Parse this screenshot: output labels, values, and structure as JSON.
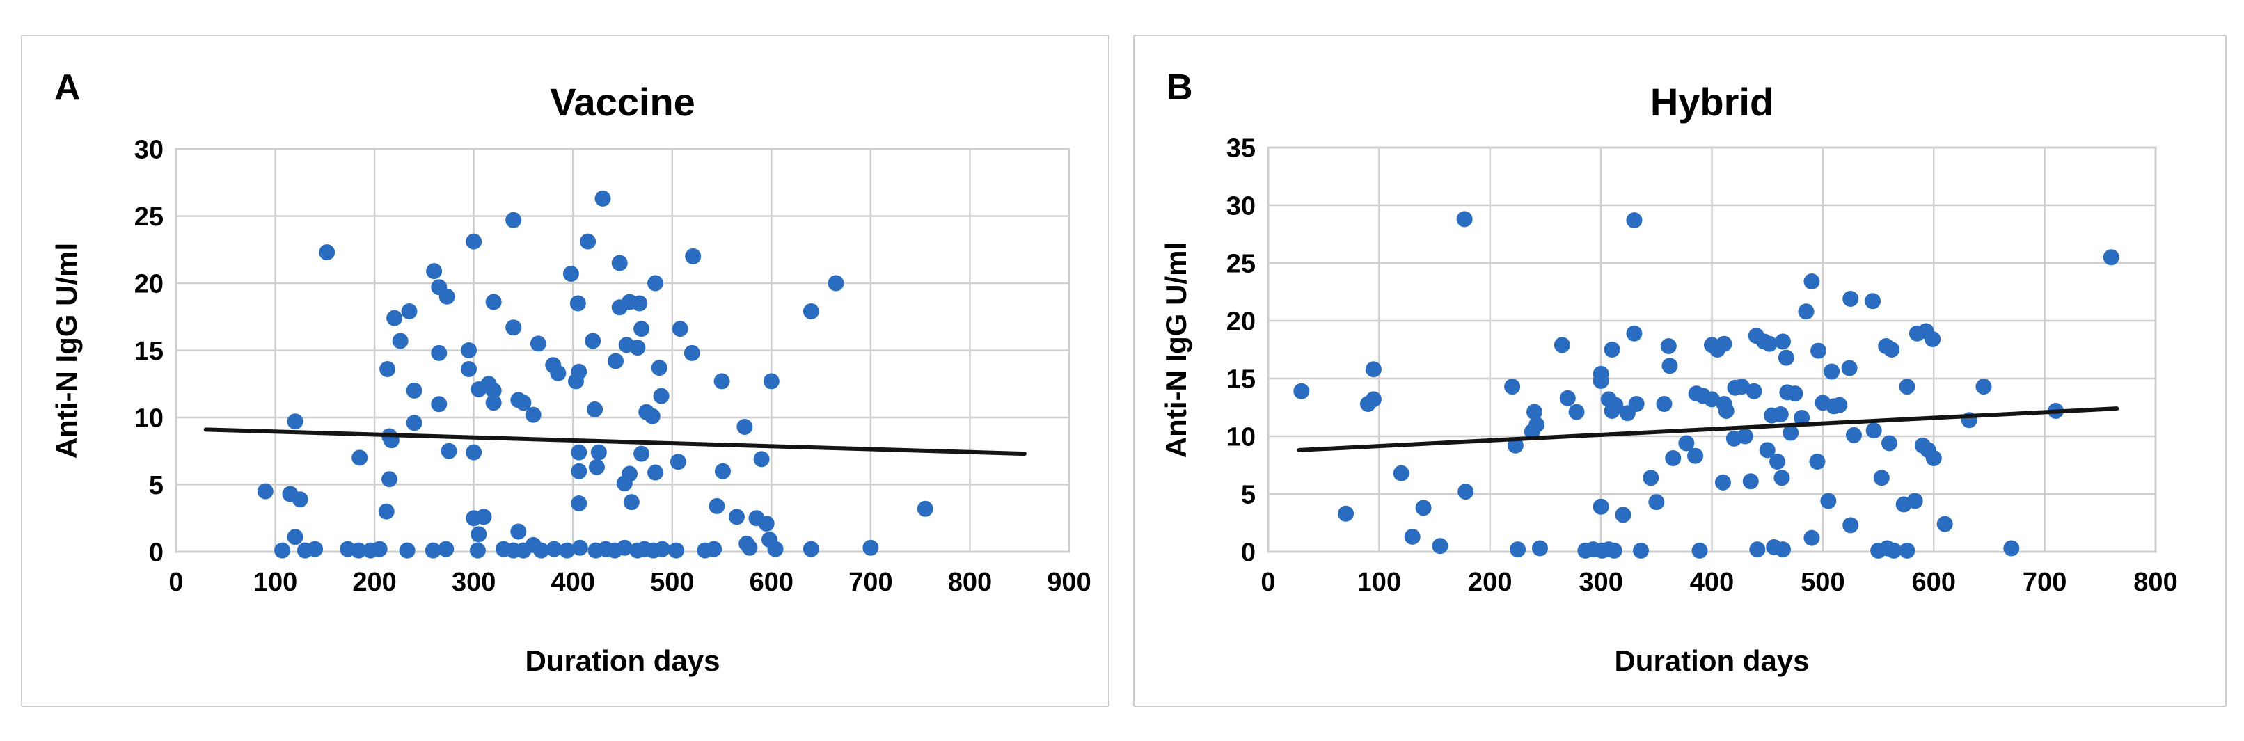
{
  "figure": {
    "background": "#ffffff"
  },
  "styles": {
    "point_color": "#2a6cc0",
    "trend_color": "#141414",
    "grid_color": "#cfcfcf",
    "panel_border": "#cccccc",
    "text_color": "#000000"
  },
  "chart_data": [
    {
      "type": "scatter",
      "panel_label": "A",
      "title": "Vaccine",
      "xlabel": "Duration days",
      "ylabel": "Anti-N IgG U/ml",
      "xlim": [
        0,
        900
      ],
      "ylim": [
        0,
        30
      ],
      "x_ticks": [
        0,
        100,
        200,
        300,
        400,
        500,
        600,
        700,
        800,
        900
      ],
      "y_ticks": [
        0,
        5,
        10,
        15,
        20,
        25,
        30
      ],
      "grid": true,
      "legend": false,
      "trendline": {
        "x1": 30,
        "y1": 9.1,
        "x2": 855,
        "y2": 7.3
      },
      "points": [
        [
          152,
          22.3
        ],
        [
          260,
          20.9
        ],
        [
          300,
          23.1
        ],
        [
          340,
          24.7
        ],
        [
          398,
          20.7
        ],
        [
          415,
          23.1
        ],
        [
          430,
          26.3
        ],
        [
          447,
          21.5
        ],
        [
          483,
          20.0
        ],
        [
          521,
          22.0
        ],
        [
          665,
          20.0
        ],
        [
          220,
          17.4
        ],
        [
          226,
          15.7
        ],
        [
          235,
          17.9
        ],
        [
          265,
          19.7
        ],
        [
          273,
          19.0
        ],
        [
          320,
          18.6
        ],
        [
          340,
          16.7
        ],
        [
          365,
          15.5
        ],
        [
          405,
          18.5
        ],
        [
          420,
          15.7
        ],
        [
          447,
          18.2
        ],
        [
          454,
          15.4
        ],
        [
          457,
          18.6
        ],
        [
          465,
          15.2
        ],
        [
          467,
          18.5
        ],
        [
          469,
          16.6
        ],
        [
          508,
          16.6
        ],
        [
          640,
          17.9
        ],
        [
          213,
          13.6
        ],
        [
          240,
          12.0
        ],
        [
          265,
          11.0
        ],
        [
          265,
          14.8
        ],
        [
          295,
          15.0
        ],
        [
          295,
          13.6
        ],
        [
          305,
          12.1
        ],
        [
          315,
          12.5
        ],
        [
          320,
          12.0
        ],
        [
          320,
          11.1
        ],
        [
          345,
          11.3
        ],
        [
          350,
          11.1
        ],
        [
          360,
          10.2
        ],
        [
          380,
          13.9
        ],
        [
          385,
          13.3
        ],
        [
          403,
          12.7
        ],
        [
          406,
          13.4
        ],
        [
          422,
          10.6
        ],
        [
          443,
          14.2
        ],
        [
          474,
          10.4
        ],
        [
          480,
          10.1
        ],
        [
          487,
          13.7
        ],
        [
          489,
          11.6
        ],
        [
          520,
          14.8
        ],
        [
          550,
          12.7
        ],
        [
          600,
          12.7
        ],
        [
          120,
          9.7
        ],
        [
          185,
          7.0
        ],
        [
          215,
          8.6
        ],
        [
          215,
          5.4
        ],
        [
          217,
          8.3
        ],
        [
          240,
          9.6
        ],
        [
          275,
          7.5
        ],
        [
          300,
          7.4
        ],
        [
          406,
          7.4
        ],
        [
          426,
          7.4
        ],
        [
          406,
          6.0
        ],
        [
          424,
          6.3
        ],
        [
          452,
          5.1
        ],
        [
          457,
          5.8
        ],
        [
          469,
          7.3
        ],
        [
          483,
          5.9
        ],
        [
          506,
          6.7
        ],
        [
          551,
          6.0
        ],
        [
          573,
          9.3
        ],
        [
          590,
          6.9
        ],
        [
          90,
          4.5
        ],
        [
          115,
          4.3
        ],
        [
          125,
          3.9
        ],
        [
          120,
          1.1
        ],
        [
          212,
          3.0
        ],
        [
          300,
          2.5
        ],
        [
          305,
          1.3
        ],
        [
          310,
          2.6
        ],
        [
          345,
          1.5
        ],
        [
          406,
          3.6
        ],
        [
          459,
          3.7
        ],
        [
          545,
          3.4
        ],
        [
          565,
          2.6
        ],
        [
          585,
          2.5
        ],
        [
          595,
          2.1
        ],
        [
          598,
          0.9
        ],
        [
          755,
          3.2
        ],
        [
          107,
          0.1
        ],
        [
          130,
          0.1
        ],
        [
          140,
          0.2
        ],
        [
          173,
          0.2
        ],
        [
          184,
          0.1
        ],
        [
          196,
          0.1
        ],
        [
          205,
          0.2
        ],
        [
          233,
          0.1
        ],
        [
          259,
          0.1
        ],
        [
          272,
          0.2
        ],
        [
          304,
          0.1
        ],
        [
          330,
          0.2
        ],
        [
          340,
          0.1
        ],
        [
          350,
          0.1
        ],
        [
          360,
          0.5
        ],
        [
          368,
          0.1
        ],
        [
          381,
          0.2
        ],
        [
          394,
          0.1
        ],
        [
          407,
          0.3
        ],
        [
          423,
          0.1
        ],
        [
          433,
          0.2
        ],
        [
          442,
          0.1
        ],
        [
          452,
          0.3
        ],
        [
          465,
          0.1
        ],
        [
          472,
          0.2
        ],
        [
          481,
          0.1
        ],
        [
          490,
          0.2
        ],
        [
          504,
          0.1
        ],
        [
          533,
          0.1
        ],
        [
          542,
          0.2
        ],
        [
          575,
          0.6
        ],
        [
          578,
          0.3
        ],
        [
          604,
          0.2
        ],
        [
          640,
          0.2
        ],
        [
          700,
          0.3
        ]
      ]
    },
    {
      "type": "scatter",
      "panel_label": "B",
      "title": "Hybrid",
      "xlabel": "Duration days",
      "ylabel": "Anti-N IgG U/ml",
      "xlim": [
        0,
        800
      ],
      "ylim": [
        0,
        35
      ],
      "x_ticks": [
        0,
        100,
        200,
        300,
        400,
        500,
        600,
        700,
        800
      ],
      "y_ticks": [
        0,
        5,
        10,
        15,
        20,
        25,
        30,
        35
      ],
      "grid": true,
      "legend": false,
      "trendline": {
        "x1": 28,
        "y1": 8.8,
        "x2": 765,
        "y2": 12.4
      },
      "points": [
        [
          177,
          28.8
        ],
        [
          330,
          28.7
        ],
        [
          760,
          25.5
        ],
        [
          490,
          23.4
        ],
        [
          525,
          21.9
        ],
        [
          545,
          21.7
        ],
        [
          485,
          20.8
        ],
        [
          95,
          15.8
        ],
        [
          265,
          17.9
        ],
        [
          300,
          15.4
        ],
        [
          310,
          17.5
        ],
        [
          330,
          18.9
        ],
        [
          361,
          17.8
        ],
        [
          362,
          16.1
        ],
        [
          400,
          17.9
        ],
        [
          405,
          17.5
        ],
        [
          411,
          18.0
        ],
        [
          440,
          18.7
        ],
        [
          447,
          18.2
        ],
        [
          452,
          18.0
        ],
        [
          464,
          18.2
        ],
        [
          467,
          16.8
        ],
        [
          496,
          17.4
        ],
        [
          508,
          15.6
        ],
        [
          524,
          15.9
        ],
        [
          557,
          17.8
        ],
        [
          562,
          17.5
        ],
        [
          585,
          18.9
        ],
        [
          593,
          19.1
        ],
        [
          599,
          18.4
        ],
        [
          30,
          13.9
        ],
        [
          90,
          12.8
        ],
        [
          95,
          13.2
        ],
        [
          220,
          14.3
        ],
        [
          238,
          10.4
        ],
        [
          240,
          12.1
        ],
        [
          242,
          11.0
        ],
        [
          270,
          13.3
        ],
        [
          278,
          12.1
        ],
        [
          300,
          14.8
        ],
        [
          307,
          13.2
        ],
        [
          310,
          12.2
        ],
        [
          313,
          12.7
        ],
        [
          324,
          12.0
        ],
        [
          332,
          12.8
        ],
        [
          357,
          12.8
        ],
        [
          386,
          13.7
        ],
        [
          392,
          13.5
        ],
        [
          400,
          13.2
        ],
        [
          411,
          12.8
        ],
        [
          413,
          12.2
        ],
        [
          421,
          14.2
        ],
        [
          427,
          14.3
        ],
        [
          438,
          13.9
        ],
        [
          454,
          11.8
        ],
        [
          462,
          11.9
        ],
        [
          468,
          13.8
        ],
        [
          475,
          13.7
        ],
        [
          481,
          11.6
        ],
        [
          500,
          12.9
        ],
        [
          510,
          12.6
        ],
        [
          515,
          12.7
        ],
        [
          528,
          10.1
        ],
        [
          546,
          10.5
        ],
        [
          576,
          14.3
        ],
        [
          632,
          11.4
        ],
        [
          645,
          14.3
        ],
        [
          710,
          12.2
        ],
        [
          120,
          6.8
        ],
        [
          178,
          5.2
        ],
        [
          223,
          9.2
        ],
        [
          345,
          6.4
        ],
        [
          365,
          8.1
        ],
        [
          377,
          9.4
        ],
        [
          385,
          8.3
        ],
        [
          410,
          6.0
        ],
        [
          420,
          9.8
        ],
        [
          430,
          10.0
        ],
        [
          435,
          6.1
        ],
        [
          450,
          8.8
        ],
        [
          459,
          7.8
        ],
        [
          463,
          6.4
        ],
        [
          471,
          10.3
        ],
        [
          495,
          7.8
        ],
        [
          553,
          6.4
        ],
        [
          560,
          9.4
        ],
        [
          590,
          9.2
        ],
        [
          595,
          8.8
        ],
        [
          600,
          8.1
        ],
        [
          70,
          3.3
        ],
        [
          130,
          1.3
        ],
        [
          140,
          3.8
        ],
        [
          300,
          3.9
        ],
        [
          320,
          3.2
        ],
        [
          350,
          4.3
        ],
        [
          490,
          1.2
        ],
        [
          505,
          4.4
        ],
        [
          525,
          2.3
        ],
        [
          573,
          4.1
        ],
        [
          583,
          4.4
        ],
        [
          610,
          2.4
        ],
        [
          155,
          0.5
        ],
        [
          225,
          0.2
        ],
        [
          245,
          0.3
        ],
        [
          286,
          0.1
        ],
        [
          293,
          0.2
        ],
        [
          301,
          0.1
        ],
        [
          307,
          0.2
        ],
        [
          312,
          0.1
        ],
        [
          336,
          0.1
        ],
        [
          389,
          0.1
        ],
        [
          441,
          0.2
        ],
        [
          456,
          0.4
        ],
        [
          464,
          0.2
        ],
        [
          550,
          0.1
        ],
        [
          558,
          0.3
        ],
        [
          564,
          0.1
        ],
        [
          576,
          0.1
        ],
        [
          670,
          0.3
        ]
      ]
    }
  ]
}
